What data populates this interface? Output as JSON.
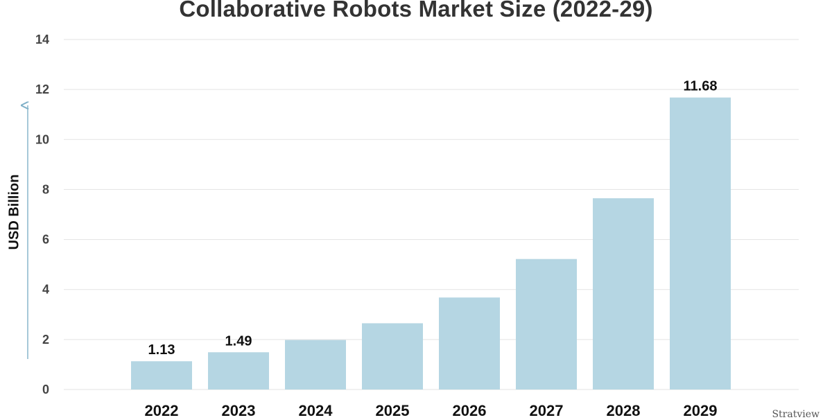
{
  "chart_data": {
    "type": "bar",
    "title": "Collaborative Robots Market Size (2022-29)",
    "xlabel": "",
    "ylabel": "USD Billion",
    "ylim": [
      0,
      14
    ],
    "yticks": [
      0,
      2,
      4,
      6,
      8,
      10,
      12,
      14
    ],
    "grid": true,
    "categories": [
      "2022",
      "2023",
      "2024",
      "2025",
      "2026",
      "2027",
      "2028",
      "2029"
    ],
    "values": [
      1.13,
      1.49,
      1.98,
      2.65,
      3.68,
      5.22,
      7.65,
      11.68
    ],
    "data_labels": [
      "1.13",
      "1.49",
      null,
      null,
      null,
      null,
      null,
      "11.68"
    ],
    "bar_color": "#b5d6e3",
    "grid_color": "#e3e3e3",
    "axis_arrow_color": "#7fb0c7"
  },
  "brand": {
    "logo_text": "Stratview"
  }
}
